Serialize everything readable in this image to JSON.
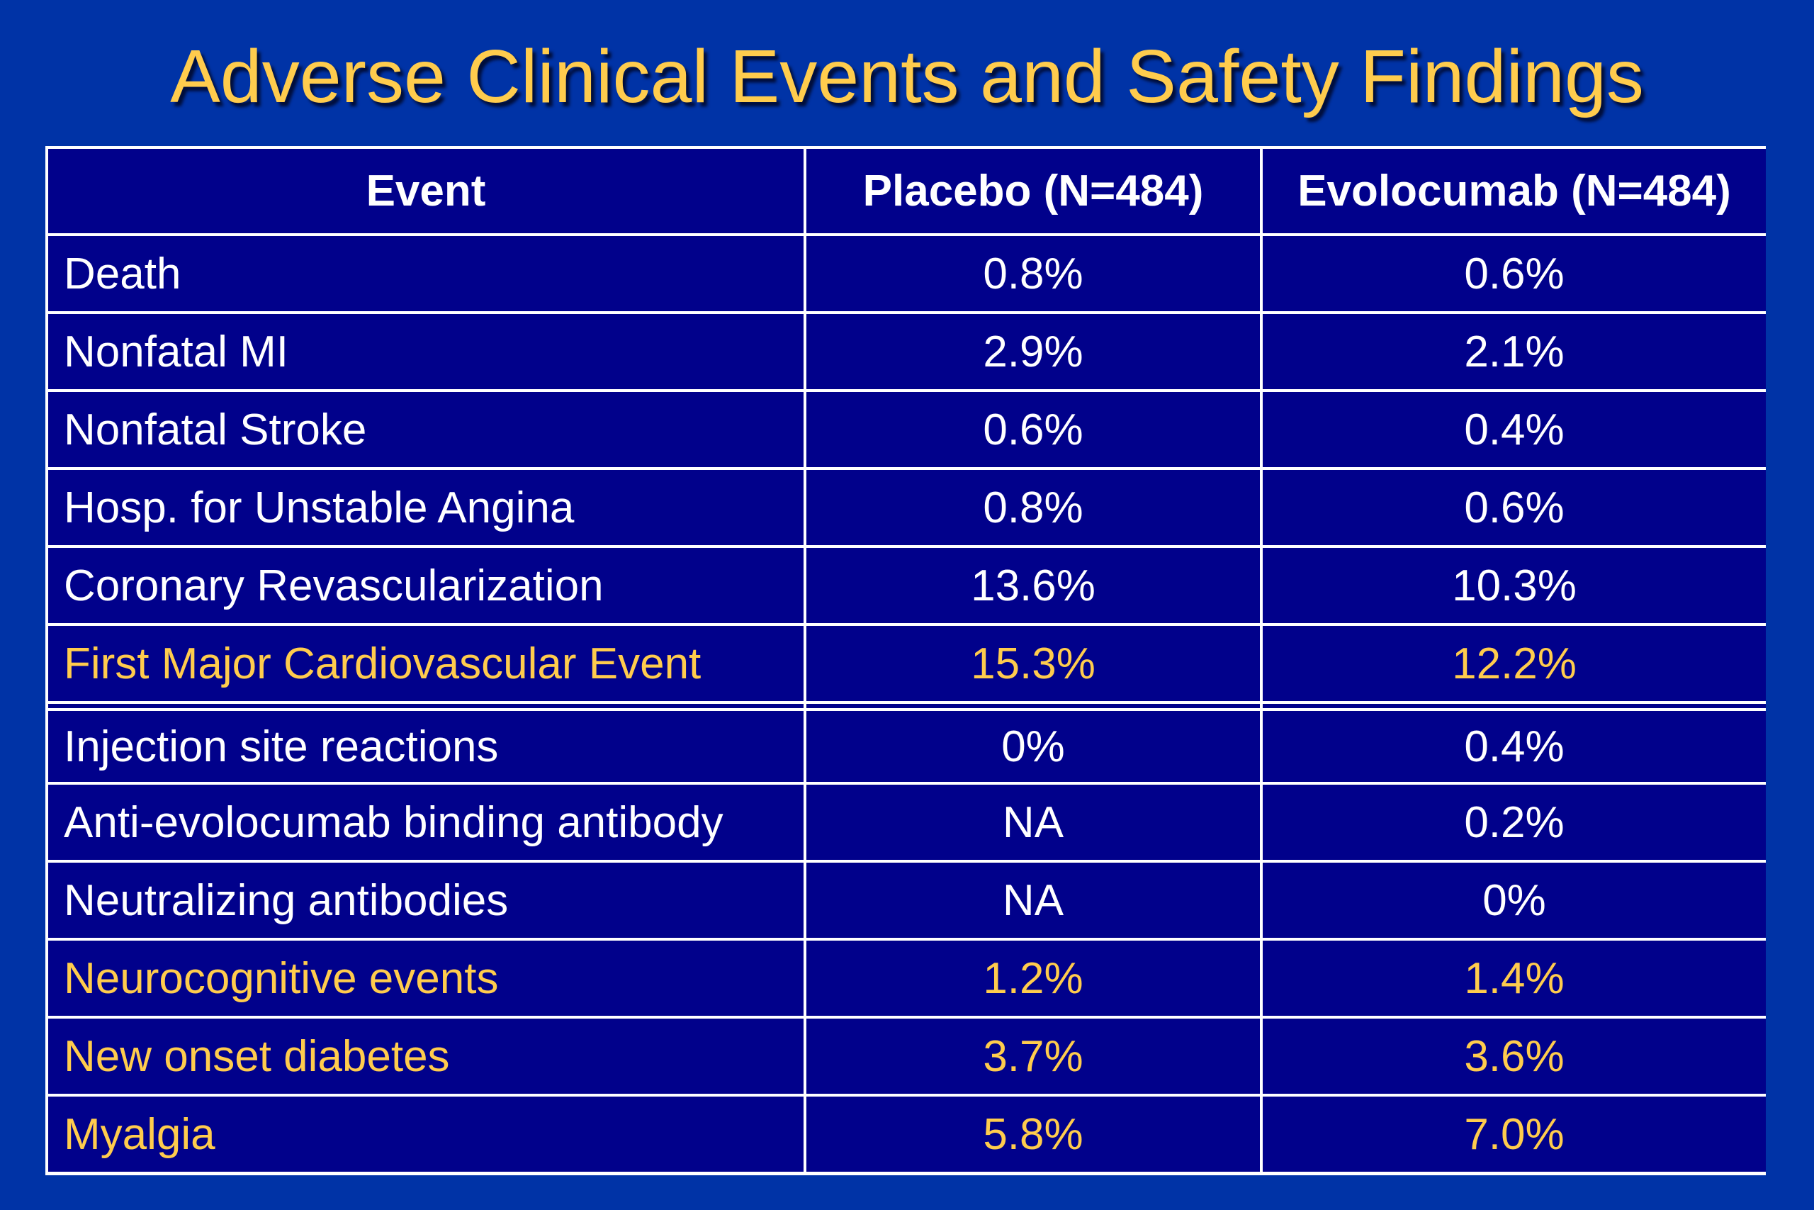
{
  "slide": {
    "title": "Adverse Clinical Events and Safety Findings"
  },
  "colors": {
    "background": "#0033a6",
    "cell_fill": "#01018b",
    "grid_lines": "#ffffff",
    "title_text": "#ffcc4d",
    "highlight_text": "#ffcc4d",
    "body_text": "#ffffff"
  },
  "table": {
    "headers": {
      "event": "Event",
      "placebo": "Placebo (N=484)",
      "evolocumab": "Evolocumab (N=484)"
    },
    "group1": [
      {
        "event": "Death",
        "placebo": "0.8%",
        "evolocumab": "0.6%",
        "highlight": false
      },
      {
        "event": "Nonfatal MI",
        "placebo": "2.9%",
        "evolocumab": "2.1%",
        "highlight": false
      },
      {
        "event": "Nonfatal Stroke",
        "placebo": "0.6%",
        "evolocumab": "0.4%",
        "highlight": false
      },
      {
        "event": "Hosp. for Unstable Angina",
        "placebo": "0.8%",
        "evolocumab": "0.6%",
        "highlight": false
      },
      {
        "event": "Coronary Revascularization",
        "placebo": "13.6%",
        "evolocumab": "10.3%",
        "highlight": false
      },
      {
        "event": "First Major Cardiovascular Event",
        "placebo": "15.3%",
        "evolocumab": "12.2%",
        "highlight": true
      }
    ],
    "group2": [
      {
        "event": "Injection site reactions",
        "placebo": "0%",
        "evolocumab": "0.4%",
        "highlight": false
      },
      {
        "event": "Anti-evolocumab binding antibody",
        "placebo": "NA",
        "evolocumab": "0.2%",
        "highlight": false
      },
      {
        "event": "Neutralizing antibodies",
        "placebo": "NA",
        "evolocumab": "0%",
        "highlight": false
      },
      {
        "event": "Neurocognitive events",
        "placebo": "1.2%",
        "evolocumab": "1.4%",
        "highlight": true
      },
      {
        "event": "New onset diabetes",
        "placebo": "3.7%",
        "evolocumab": "3.6%",
        "highlight": true
      },
      {
        "event": "Myalgia",
        "placebo": "5.8%",
        "evolocumab": "7.0%",
        "highlight": true
      }
    ]
  }
}
